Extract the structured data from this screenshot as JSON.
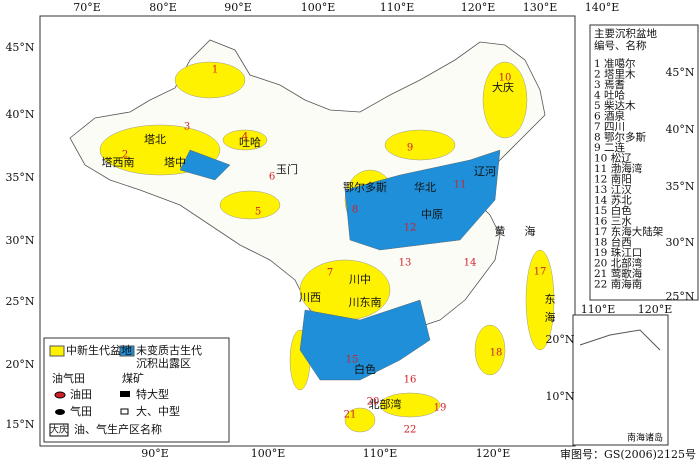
{
  "lon_labels_top": [
    "70°E",
    "80°E",
    "90°E",
    "100°E",
    "110°E",
    "120°E",
    "130°E",
    "140°E"
  ],
  "lon_labels_bottom": [
    "90°E",
    "100°E",
    "110°E",
    "120°E"
  ],
  "lat_labels_left": [
    "45°N",
    "40°N",
    "35°N",
    "30°N",
    "25°N",
    "20°N",
    "15°N"
  ],
  "lat_labels_right": [
    "45°N",
    "40°N",
    "35°N",
    "30°N",
    "25°N"
  ],
  "basin_list": {
    "title_lines": [
      "主要沉积盆地",
      "编号、名称"
    ],
    "items": [
      "1 准噶尔",
      "2 塔里木",
      "3 焉耆",
      "4 吐哈",
      "5 柴达木",
      "6 酒泉",
      "7 四川",
      "8 鄂尔多斯",
      "9 二连",
      "10 松辽",
      "11 渤海湾",
      "12 南阳",
      "13 江汉",
      "14 苏北",
      "15 白色",
      "16 三水",
      "17 东海大陆架",
      "18 台西",
      "19 珠江口",
      "20 北部湾",
      "21 莺歌海",
      "22 南海南"
    ]
  },
  "map_labels": [
    "塔北",
    "塔中",
    "塔西南",
    "吐哈",
    "玉门",
    "鄂尔多斯",
    "华北",
    "大庆",
    "辽河",
    "中原",
    "川中",
    "川西",
    "川东南",
    "黄",
    "海",
    "东",
    "海",
    "白色",
    "北部湾"
  ],
  "basin_numbers": [
    "1",
    "2",
    "3",
    "4",
    "5",
    "6",
    "7",
    "8",
    "9",
    "10",
    "11",
    "12",
    "13",
    "14",
    "15",
    "16",
    "17",
    "18",
    "19",
    "20",
    "21",
    "22"
  ],
  "legend": {
    "mesozoic": "中新生代盆地",
    "paleozoic_lines": [
      "未变质古生代",
      "沉积出露区"
    ],
    "oilgas": "油气田",
    "coal": "煤矿",
    "oil": "油田",
    "gas": "气田",
    "huge": "特大型",
    "large": "大、中型",
    "example": "大庆",
    "names": "油、气生产区名称"
  },
  "inset": {
    "lon": [
      "110°E",
      "120°E"
    ],
    "lat": [
      "20°N",
      "10°N"
    ],
    "title": "南海诸岛"
  },
  "approval": "审图号：GS(2006)2125号"
}
